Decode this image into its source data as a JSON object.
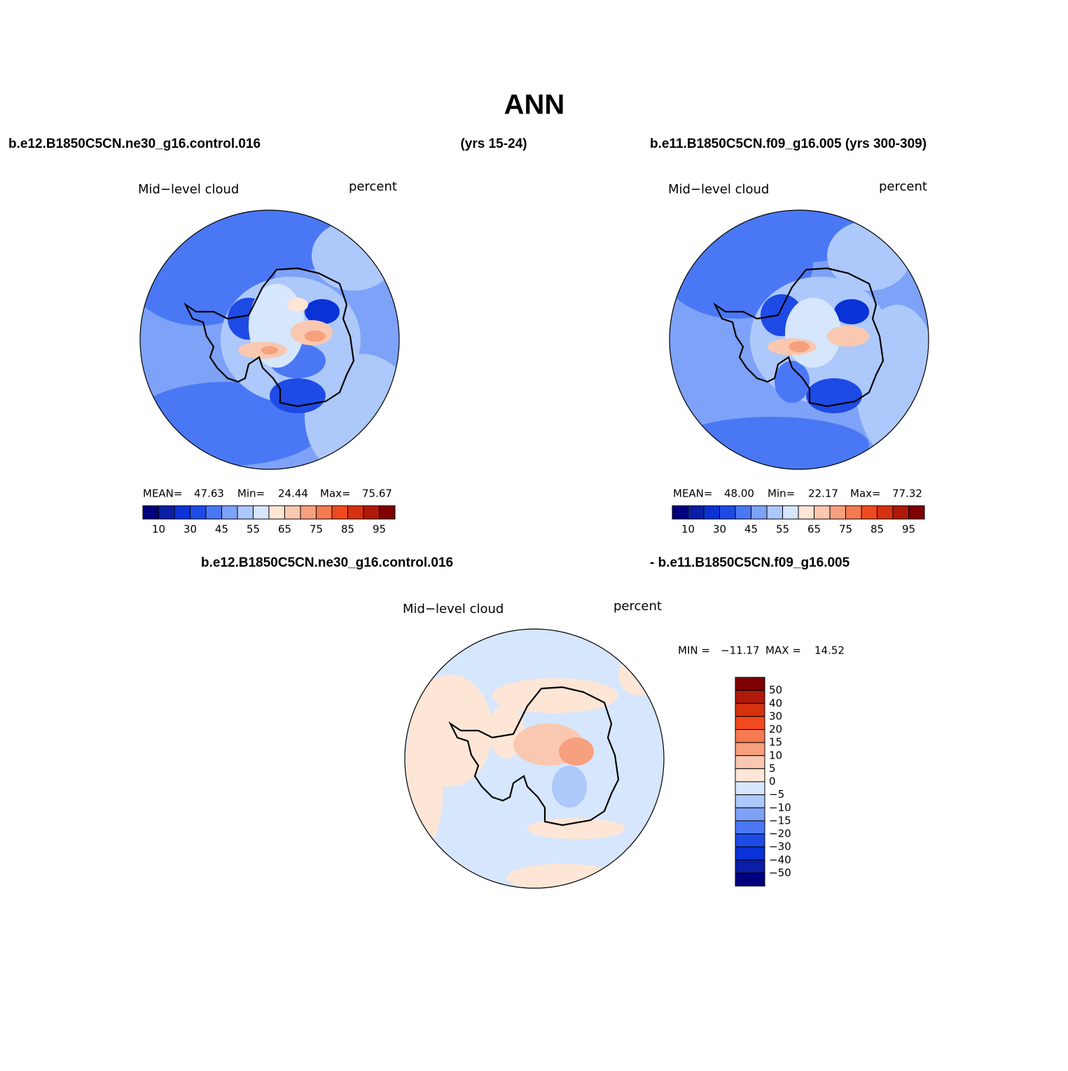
{
  "header": {
    "title": "ANN",
    "left": "b.e12.B1850C5CN.ne30_g16.control.016",
    "middle": "(yrs 15-24)",
    "right": "b.e11.B1850C5CN.f09_g16.005 (yrs 300-309)"
  },
  "diff_header": {
    "left": "b.e12.B1850C5CN.ne30_g16.control.016",
    "right": "- b.e11.B1850C5CN.f09_g16.005"
  },
  "panels": [
    {
      "title": "Mid−level cloud",
      "units": "percent",
      "stats": [
        {
          "label": "MEAN=",
          "value": "47.63"
        },
        {
          "label": "Min=",
          "value": "24.44"
        },
        {
          "label": "Max=",
          "value": "75.67"
        }
      ],
      "colorbar": {
        "colors": [
          "#00007f",
          "#0a1ea6",
          "#0a32d6",
          "#1e4be6",
          "#4a78f5",
          "#7ea2f7",
          "#adc8fa",
          "#d6e6fc",
          "#fde6d6",
          "#fac8b0",
          "#f7a07e",
          "#f57a50",
          "#f04a1e",
          "#d63210",
          "#b01a0a",
          "#7f0000"
        ],
        "labels": [
          "10",
          "30",
          "45",
          "55",
          "65",
          "75",
          "85",
          "95"
        ]
      }
    },
    {
      "title": "Mid−level cloud",
      "units": "percent",
      "stats": [
        {
          "label": "MEAN=",
          "value": "48.00"
        },
        {
          "label": "Min=",
          "value": "22.17"
        },
        {
          "label": "Max=",
          "value": "77.32"
        }
      ],
      "colorbar": {
        "colors": [
          "#00007f",
          "#0a1ea6",
          "#0a32d6",
          "#1e4be6",
          "#4a78f5",
          "#7ea2f7",
          "#adc8fa",
          "#d6e6fc",
          "#fde6d6",
          "#fac8b0",
          "#f7a07e",
          "#f57a50",
          "#f04a1e",
          "#d63210",
          "#b01a0a",
          "#7f0000"
        ],
        "labels": [
          "10",
          "30",
          "45",
          "55",
          "65",
          "75",
          "85",
          "95"
        ]
      }
    },
    {
      "title": "Mid−level cloud",
      "units": "percent",
      "stats": [
        {
          "label": "MIN =",
          "value": "−11.17"
        },
        {
          "label": "MAX =",
          "value": "14.52"
        }
      ],
      "colorbar": {
        "colors": [
          "#7f0000",
          "#b01a0a",
          "#d63210",
          "#f04a1e",
          "#f57a50",
          "#f7a07e",
          "#fac8b0",
          "#fde6d6",
          "#d6e6fc",
          "#adc8fa",
          "#7ea2f7",
          "#4a78f5",
          "#1e4be6",
          "#0a32d6",
          "#0a1ea6",
          "#00007f"
        ],
        "labels": [
          "50",
          "40",
          "30",
          "20",
          "15",
          "10",
          "5",
          "0",
          "−5",
          "−10",
          "−15",
          "−20",
          "−30",
          "−40",
          "−50"
        ]
      }
    }
  ]
}
